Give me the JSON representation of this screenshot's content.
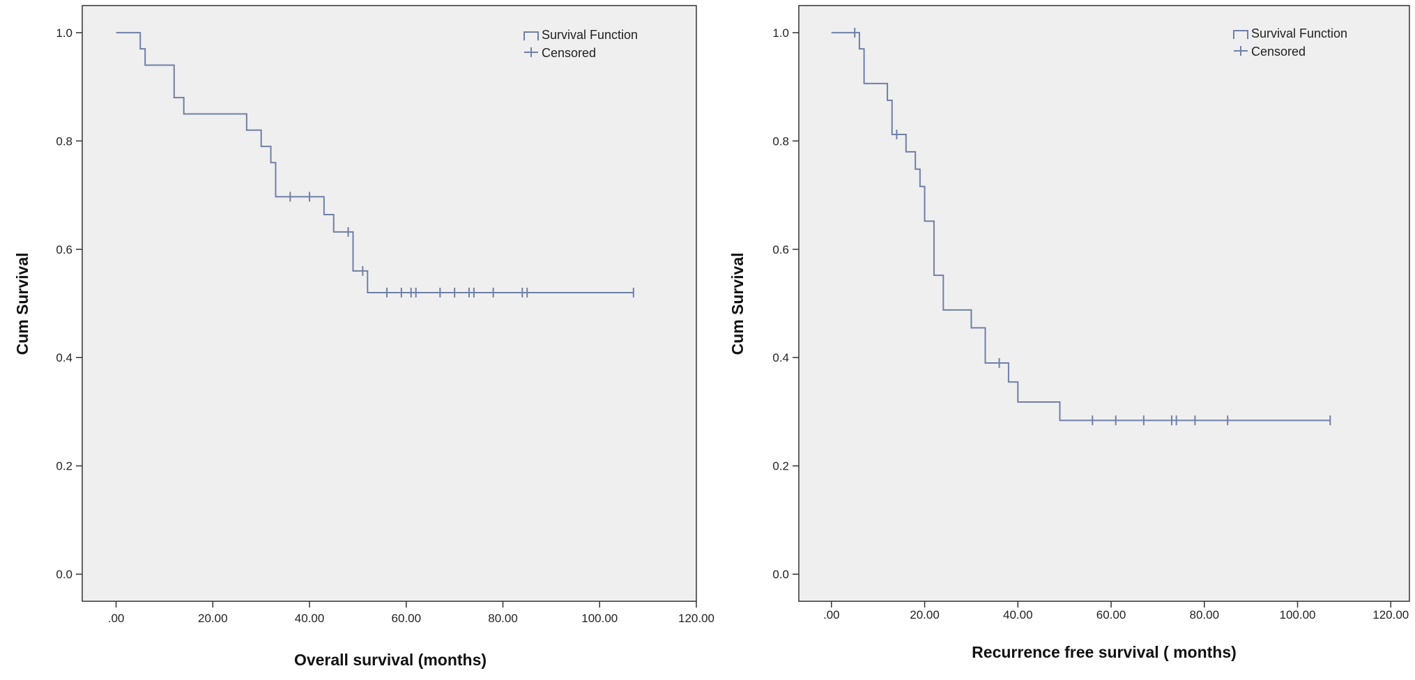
{
  "chart_data": [
    {
      "type": "line",
      "title": "",
      "xlabel": "Overall survival (months)",
      "ylabel": "Cum Survival",
      "xlim": [
        -7,
        120
      ],
      "ylim": [
        -0.05,
        1.05
      ],
      "x_ticks": [
        ".00",
        "20.00",
        "40.00",
        "60.00",
        "80.00",
        "100.00",
        "120.00"
      ],
      "x_tick_values": [
        0,
        20,
        40,
        60,
        80,
        100,
        120
      ],
      "y_ticks": [
        "0.0",
        "0.2",
        "0.4",
        "0.6",
        "0.8",
        "1.0"
      ],
      "y_tick_values": [
        0,
        0.2,
        0.4,
        0.6,
        0.8,
        1.0
      ],
      "legend": {
        "position": "top-right",
        "entries": [
          "Survival Function",
          "Censored"
        ]
      },
      "grid": false,
      "color": "#6f7fa8",
      "series": [
        {
          "name": "Survival Function",
          "steps": [
            [
              0,
              1.0
            ],
            [
              5,
              0.97
            ],
            [
              6,
              0.94
            ],
            [
              12,
              0.88
            ],
            [
              14,
              0.85
            ],
            [
              27,
              0.82
            ],
            [
              30,
              0.79
            ],
            [
              32,
              0.76
            ],
            [
              33,
              0.697
            ],
            [
              43,
              0.664
            ],
            [
              45,
              0.632
            ],
            [
              49,
              0.56
            ],
            [
              52,
              0.52
            ],
            [
              107,
              0.52
            ]
          ]
        },
        {
          "name": "Censored",
          "points": [
            [
              36,
              0.697
            ],
            [
              40,
              0.697
            ],
            [
              48,
              0.632
            ],
            [
              51,
              0.56
            ],
            [
              56,
              0.52
            ],
            [
              59,
              0.52
            ],
            [
              61,
              0.52
            ],
            [
              62,
              0.52
            ],
            [
              67,
              0.52
            ],
            [
              70,
              0.52
            ],
            [
              73,
              0.52
            ],
            [
              74,
              0.52
            ],
            [
              78,
              0.52
            ],
            [
              84,
              0.52
            ],
            [
              85,
              0.52
            ],
            [
              107,
              0.52
            ]
          ]
        }
      ]
    },
    {
      "type": "line",
      "title": "",
      "xlabel": "Recurrence free survival ( months)",
      "ylabel": "Cum Survival",
      "xlim": [
        -7,
        124
      ],
      "ylim": [
        -0.05,
        1.05
      ],
      "x_ticks": [
        ".00",
        "20.00",
        "40.00",
        "60.00",
        "80.00",
        "100.00",
        "120.00"
      ],
      "x_tick_values": [
        0,
        20,
        40,
        60,
        80,
        100,
        120
      ],
      "y_ticks": [
        "0.0",
        "0.2",
        "0.4",
        "0.6",
        "0.8",
        "1.0"
      ],
      "y_tick_values": [
        0,
        0.2,
        0.4,
        0.6,
        0.8,
        1.0
      ],
      "legend": {
        "position": "top-right",
        "entries": [
          "Survival Function",
          "Censored"
        ]
      },
      "grid": false,
      "color": "#6f7fa8",
      "series": [
        {
          "name": "Survival Function",
          "steps": [
            [
              0,
              1.0
            ],
            [
              6,
              0.97
            ],
            [
              7,
              0.906
            ],
            [
              12,
              0.875
            ],
            [
              13,
              0.812
            ],
            [
              16,
              0.78
            ],
            [
              18,
              0.748
            ],
            [
              19,
              0.716
            ],
            [
              20,
              0.652
            ],
            [
              22,
              0.552
            ],
            [
              24,
              0.488
            ],
            [
              30,
              0.455
            ],
            [
              33,
              0.39
            ],
            [
              38,
              0.355
            ],
            [
              40,
              0.318
            ],
            [
              49,
              0.284
            ],
            [
              107,
              0.284
            ]
          ]
        },
        {
          "name": "Censored",
          "points": [
            [
              5,
              1.0
            ],
            [
              14,
              0.812
            ],
            [
              36,
              0.39
            ],
            [
              56,
              0.284
            ],
            [
              61,
              0.284
            ],
            [
              67,
              0.284
            ],
            [
              73,
              0.284
            ],
            [
              74,
              0.284
            ],
            [
              78,
              0.284
            ],
            [
              85,
              0.284
            ],
            [
              107,
              0.284
            ]
          ]
        }
      ]
    }
  ]
}
